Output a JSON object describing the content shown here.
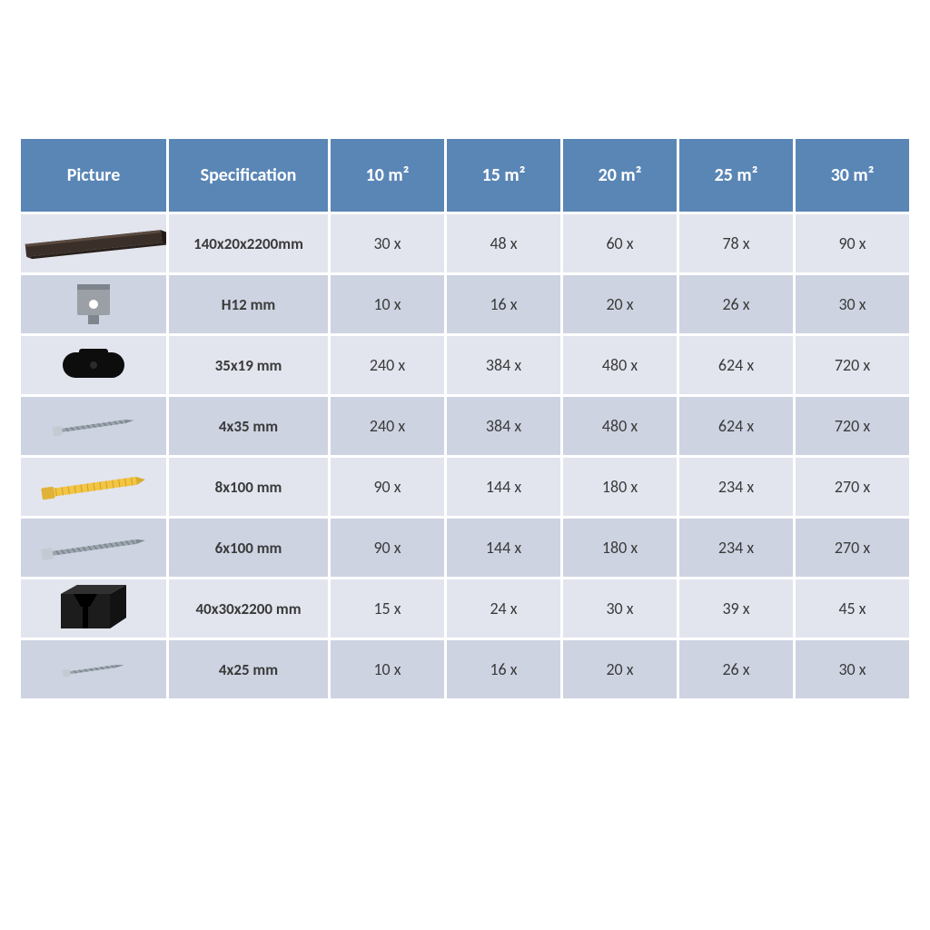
{
  "table": {
    "header_bg": "#5a86b6",
    "header_fg": "#ffffff",
    "row_colors": [
      "#e2e5ee",
      "#cdd3e1"
    ],
    "gap_color": "#ffffff",
    "columns": [
      {
        "key": "picture",
        "label": "Picture"
      },
      {
        "key": "spec",
        "label": "Specification"
      },
      {
        "key": "q10",
        "label": "10 m²"
      },
      {
        "key": "q15",
        "label": "15 m²"
      },
      {
        "key": "q20",
        "label": "20 m²"
      },
      {
        "key": "q25",
        "label": "25 m²"
      },
      {
        "key": "q30",
        "label": "30 m²"
      }
    ],
    "rows": [
      {
        "icon": "board",
        "spec": "140x20x2200mm",
        "q": [
          "30 x",
          "48 x",
          "60 x",
          "78 x",
          "90 x"
        ]
      },
      {
        "icon": "clip",
        "spec": "H12 mm",
        "q": [
          "10 x",
          "16 x",
          "20 x",
          "26 x",
          "30 x"
        ]
      },
      {
        "icon": "black-clip",
        "spec": "35x19 mm",
        "q": [
          "240 x",
          "384 x",
          "480 x",
          "624 x",
          "720 x"
        ]
      },
      {
        "icon": "screw-small",
        "spec": "4x35 mm",
        "q": [
          "240 x",
          "384 x",
          "480 x",
          "624 x",
          "720 x"
        ]
      },
      {
        "icon": "dowel",
        "spec": "8x100 mm",
        "q": [
          "90 x",
          "144 x",
          "180 x",
          "234 x",
          "270 x"
        ]
      },
      {
        "icon": "screw-long",
        "spec": "6x100 mm",
        "q": [
          "90 x",
          "144 x",
          "180 x",
          "234 x",
          "270 x"
        ]
      },
      {
        "icon": "joist",
        "spec": "40x30x2200 mm",
        "q": [
          "15 x",
          "24 x",
          "30 x",
          "39 x",
          "45 x"
        ]
      },
      {
        "icon": "screw-tiny",
        "spec": "4x25 mm",
        "q": [
          "10 x",
          "16 x",
          "20 x",
          "26 x",
          "30 x"
        ]
      }
    ]
  },
  "icons": {
    "board": {
      "type": "board",
      "fill": "#3a2f29",
      "w": 150,
      "h": 14
    },
    "clip": {
      "type": "clip",
      "fill": "#9aa0a6"
    },
    "black-clip": {
      "type": "bclip",
      "fill": "#0d0d0d"
    },
    "screw-small": {
      "type": "screw",
      "len": 90,
      "head": 10,
      "shaft": 4,
      "fill": "#9aa4ad"
    },
    "dowel": {
      "type": "dowel",
      "len": 115,
      "fill": "#f4c542"
    },
    "screw-long": {
      "type": "screw",
      "len": 115,
      "head": 12,
      "shaft": 5,
      "fill": "#9aa4ad"
    },
    "joist": {
      "type": "joist",
      "fill": "#1c1c1c"
    },
    "screw-tiny": {
      "type": "screw",
      "len": 68,
      "head": 8,
      "shaft": 3,
      "fill": "#9aa4ad"
    }
  }
}
